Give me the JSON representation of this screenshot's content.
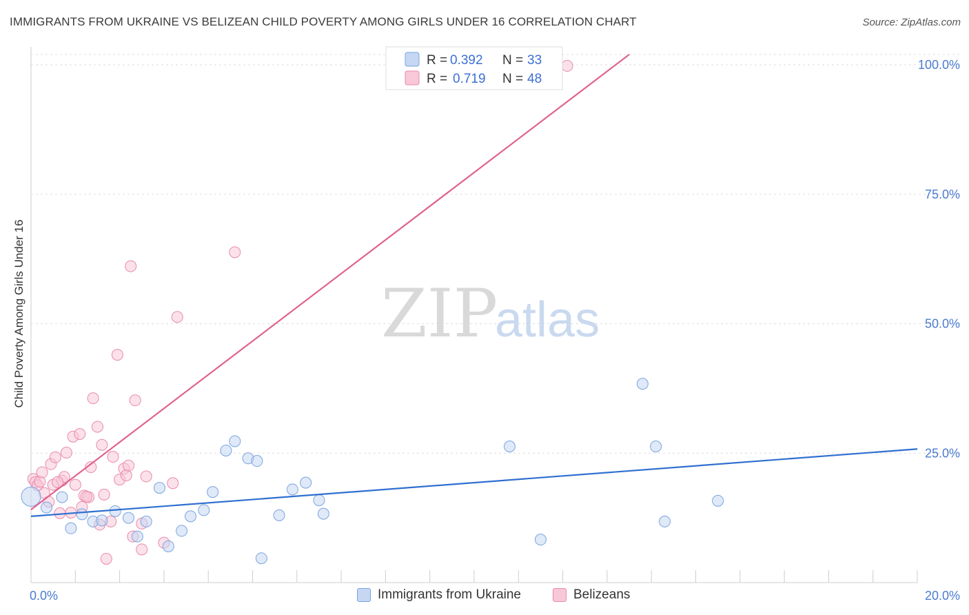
{
  "title": "IMMIGRANTS FROM UKRAINE VS BELIZEAN CHILD POVERTY AMONG GIRLS UNDER 16 CORRELATION CHART",
  "source": "Source: ZipAtlas.com",
  "watermark": {
    "zip": "ZIP",
    "atlas": "atlas"
  },
  "legend_top": [
    {
      "r_label": "R =",
      "r_value": "0.392",
      "n_label": "N =",
      "n_value": "33"
    },
    {
      "r_label": "R =",
      "r_value": "0.719",
      "n_label": "N =",
      "n_value": "48"
    }
  ],
  "legend_bottom": [
    {
      "label": "Immigrants from Ukraine"
    },
    {
      "label": "Belizeans"
    }
  ],
  "colors": {
    "ukraine_fill": "#c5d7f3",
    "ukraine_stroke": "#7aa3df",
    "ukraine_line": "#2f6fd0",
    "belize_fill": "#f8c8d8",
    "belize_stroke": "#e98aaa",
    "belize_line": "#e0628c",
    "grid": "#dddddd",
    "axis_text": "#4a7bd0"
  },
  "chart_data": {
    "type": "scatter",
    "title": "IMMIGRANTS FROM UKRAINE VS BELIZEAN CHILD POVERTY AMONG GIRLS UNDER 16 CORRELATION CHART",
    "xlabel": "",
    "ylabel": "Child Poverty Among Girls Under 16",
    "xlim": [
      0,
      20
    ],
    "ylim": [
      0,
      102
    ],
    "x_ticks": [
      {
        "v": 0,
        "label": "0.0%"
      },
      {
        "v": 20,
        "label": "20.0%"
      }
    ],
    "y_ticks": [
      {
        "v": 25,
        "label": "25.0%"
      },
      {
        "v": 50,
        "label": "50.0%"
      },
      {
        "v": 75,
        "label": "75.0%"
      },
      {
        "v": 100,
        "label": "100.0%"
      }
    ],
    "series": [
      {
        "name": "Immigrants from Ukraine",
        "r": 0.392,
        "n": 33,
        "trend": {
          "x": [
            0,
            20
          ],
          "y": [
            12.8,
            25.8
          ]
        },
        "points": [
          {
            "x": 0.0,
            "y": 16.6
          },
          {
            "x": 0.35,
            "y": 14.5
          },
          {
            "x": 0.7,
            "y": 16.5
          },
          {
            "x": 0.9,
            "y": 10.5
          },
          {
            "x": 1.15,
            "y": 13.2
          },
          {
            "x": 1.4,
            "y": 11.8
          },
          {
            "x": 1.6,
            "y": 12.0
          },
          {
            "x": 1.9,
            "y": 13.8
          },
          {
            "x": 2.2,
            "y": 12.5
          },
          {
            "x": 2.4,
            "y": 8.9
          },
          {
            "x": 2.6,
            "y": 11.8
          },
          {
            "x": 2.9,
            "y": 18.3
          },
          {
            "x": 3.1,
            "y": 7.0
          },
          {
            "x": 3.4,
            "y": 10.0
          },
          {
            "x": 3.6,
            "y": 12.8
          },
          {
            "x": 3.9,
            "y": 14.0
          },
          {
            "x": 4.1,
            "y": 17.5
          },
          {
            "x": 4.4,
            "y": 25.5
          },
          {
            "x": 4.6,
            "y": 27.3
          },
          {
            "x": 4.9,
            "y": 24.0
          },
          {
            "x": 5.1,
            "y": 23.5
          },
          {
            "x": 5.2,
            "y": 4.7
          },
          {
            "x": 5.6,
            "y": 13.0
          },
          {
            "x": 5.9,
            "y": 18.0
          },
          {
            "x": 6.2,
            "y": 19.3
          },
          {
            "x": 6.5,
            "y": 15.9
          },
          {
            "x": 6.6,
            "y": 13.3
          },
          {
            "x": 11.5,
            "y": 8.3
          },
          {
            "x": 10.8,
            "y": 26.3
          },
          {
            "x": 13.8,
            "y": 38.4
          },
          {
            "x": 14.1,
            "y": 26.3
          },
          {
            "x": 14.3,
            "y": 11.8
          },
          {
            "x": 15.5,
            "y": 15.8
          }
        ]
      },
      {
        "name": "Belizeans",
        "r": 0.719,
        "n": 48,
        "trend": {
          "x": [
            0,
            13.5
          ],
          "y": [
            14.1,
            102.0
          ]
        },
        "points": [
          {
            "x": 0.05,
            "y": 20.0
          },
          {
            "x": 0.1,
            "y": 19.4
          },
          {
            "x": 0.15,
            "y": 18.8
          },
          {
            "x": 0.2,
            "y": 19.5
          },
          {
            "x": 0.25,
            "y": 21.3
          },
          {
            "x": 0.3,
            "y": 17.3
          },
          {
            "x": 0.4,
            "y": 15.6
          },
          {
            "x": 0.45,
            "y": 22.9
          },
          {
            "x": 0.5,
            "y": 18.9
          },
          {
            "x": 0.55,
            "y": 24.2
          },
          {
            "x": 0.65,
            "y": 13.4
          },
          {
            "x": 0.7,
            "y": 19.7
          },
          {
            "x": 0.75,
            "y": 20.4
          },
          {
            "x": 0.8,
            "y": 25.1
          },
          {
            "x": 0.9,
            "y": 13.5
          },
          {
            "x": 0.95,
            "y": 28.2
          },
          {
            "x": 1.0,
            "y": 18.9
          },
          {
            "x": 1.1,
            "y": 28.7
          },
          {
            "x": 1.15,
            "y": 14.6
          },
          {
            "x": 1.2,
            "y": 16.8
          },
          {
            "x": 1.3,
            "y": 16.5
          },
          {
            "x": 1.35,
            "y": 22.3
          },
          {
            "x": 1.4,
            "y": 35.6
          },
          {
            "x": 1.5,
            "y": 30.1
          },
          {
            "x": 1.55,
            "y": 11.2
          },
          {
            "x": 1.6,
            "y": 26.6
          },
          {
            "x": 1.65,
            "y": 17.0
          },
          {
            "x": 1.7,
            "y": 4.6
          },
          {
            "x": 1.8,
            "y": 11.8
          },
          {
            "x": 1.85,
            "y": 24.3
          },
          {
            "x": 1.95,
            "y": 44.0
          },
          {
            "x": 2.0,
            "y": 19.9
          },
          {
            "x": 2.1,
            "y": 22.0
          },
          {
            "x": 2.15,
            "y": 20.7
          },
          {
            "x": 2.25,
            "y": 61.1
          },
          {
            "x": 2.3,
            "y": 8.9
          },
          {
            "x": 2.35,
            "y": 35.2
          },
          {
            "x": 2.5,
            "y": 11.4
          },
          {
            "x": 2.2,
            "y": 22.6
          },
          {
            "x": 2.5,
            "y": 6.4
          },
          {
            "x": 2.6,
            "y": 20.5
          },
          {
            "x": 3.0,
            "y": 7.7
          },
          {
            "x": 3.2,
            "y": 19.2
          },
          {
            "x": 3.3,
            "y": 51.3
          },
          {
            "x": 4.6,
            "y": 63.8
          },
          {
            "x": 12.1,
            "y": 99.8
          },
          {
            "x": 0.6,
            "y": 19.4
          },
          {
            "x": 1.25,
            "y": 16.6
          }
        ]
      }
    ]
  }
}
